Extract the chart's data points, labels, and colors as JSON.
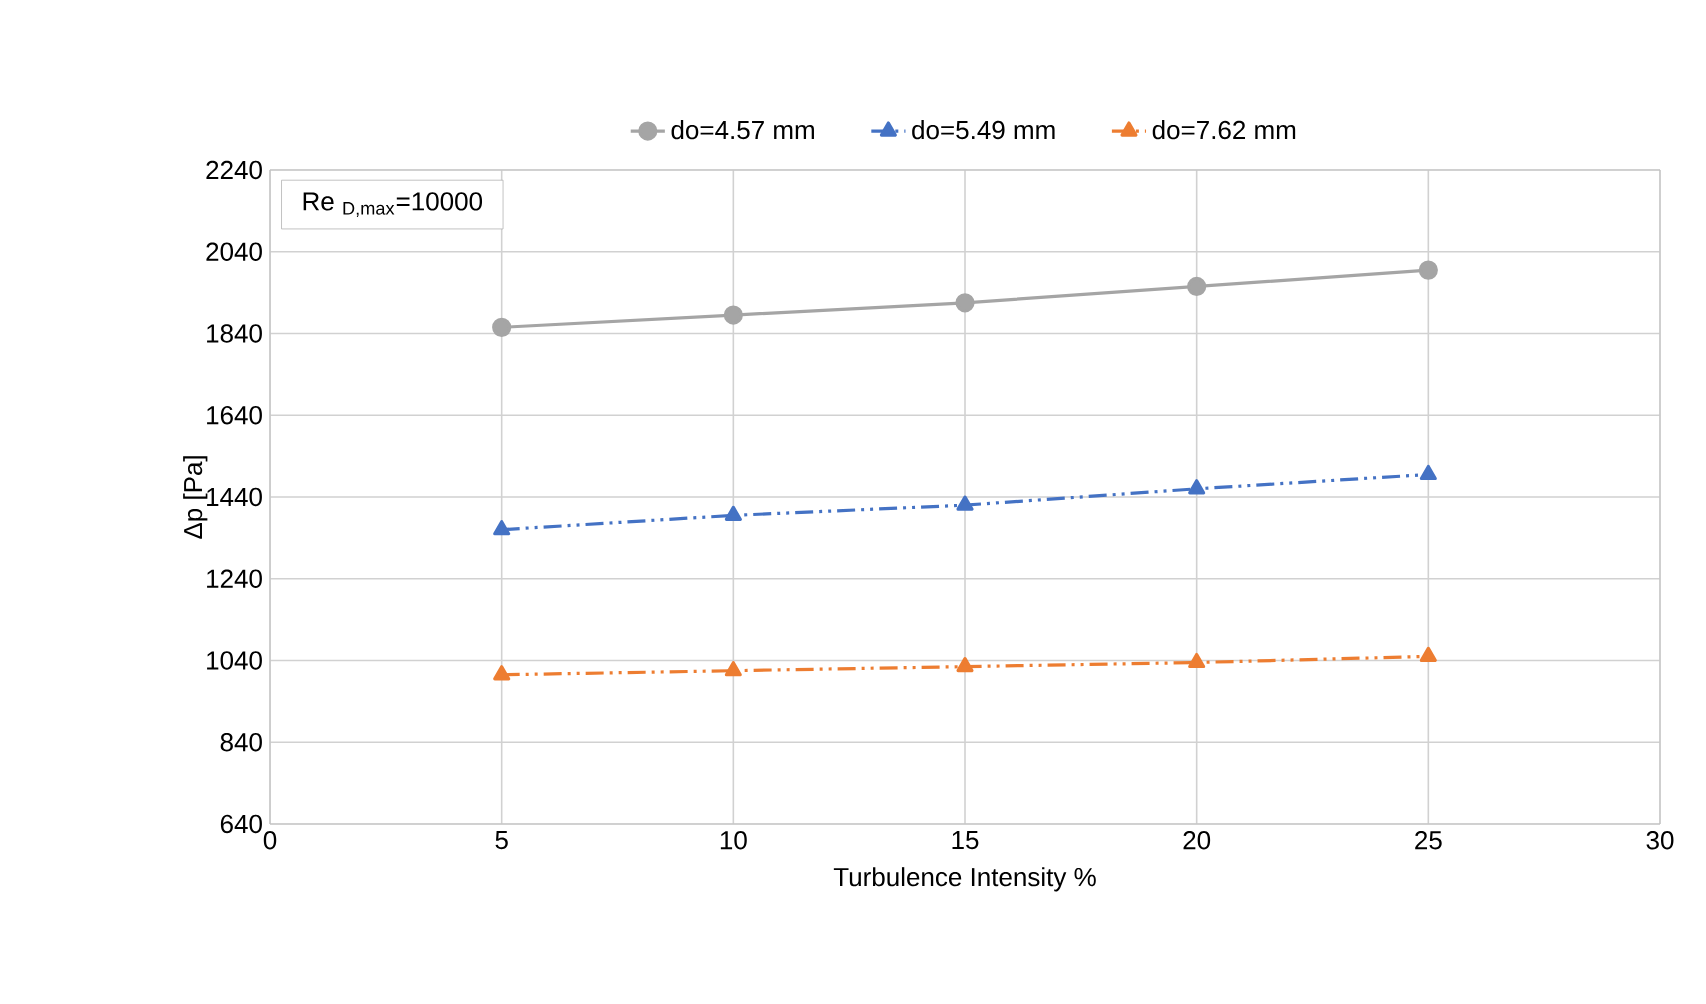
{
  "chart_data": {
    "type": "line",
    "xlabel": "Turbulence Intensity %",
    "ylabel": "Δp [Pa]",
    "annotations": [
      "Re $_{D,max}$=10000"
    ],
    "x": [
      5,
      10,
      15,
      20,
      25
    ],
    "series": [
      {
        "name": "do=4.57 mm",
        "color": "#a5a5a5",
        "marker": "circle",
        "line_style": "solid",
        "values": [
          1855,
          1885,
          1915,
          1955,
          1995
        ]
      },
      {
        "name": "do=5.49 mm",
        "color": "#4472c4",
        "marker": "triangle",
        "line_style": "dashed",
        "values": [
          1360,
          1395,
          1420,
          1460,
          1495
        ]
      },
      {
        "name": "do=7.62 mm",
        "color": "#ed7d31",
        "marker": "triangle",
        "line_style": "dashed",
        "values": [
          1005,
          1015,
          1025,
          1035,
          1050
        ]
      }
    ],
    "xlim": [
      0,
      30
    ],
    "xticks": [
      0,
      5,
      10,
      15,
      20,
      25,
      30
    ],
    "ylim": [
      640,
      2240
    ],
    "yticks": [
      640,
      840,
      1040,
      1240,
      1440,
      1640,
      1840,
      2040,
      2240
    ],
    "grid": true,
    "legend": "top"
  }
}
